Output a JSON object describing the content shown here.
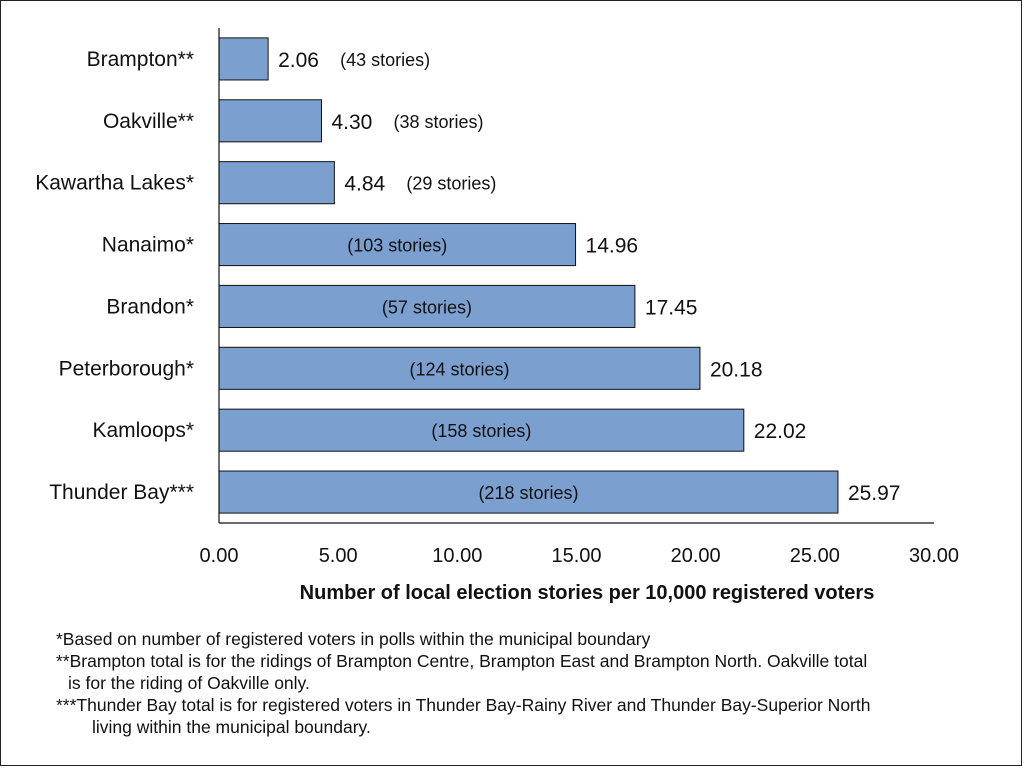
{
  "chart_data": {
    "type": "bar",
    "orientation": "horizontal",
    "categories": [
      "Brampton**",
      "Oakville**",
      "Kawartha Lakes*",
      "Nanaimo*",
      "Brandon*",
      "Peterborough*",
      "Kamloops*",
      "Thunder Bay***"
    ],
    "values": [
      2.06,
      4.3,
      4.84,
      14.96,
      17.45,
      20.18,
      22.02,
      25.97
    ],
    "value_labels": [
      "2.06",
      "4.30",
      "4.84",
      "14.96",
      "17.45",
      "20.18",
      "22.02",
      "25.97"
    ],
    "story_labels": [
      "(43 stories)",
      "(38 stories)",
      "(29 stories)",
      "(103 stories)",
      "(57 stories)",
      "(124 stories)",
      "(158 stories)",
      "(218 stories)"
    ],
    "xlabel": "Number of local election stories per 10,000  registered voters",
    "xlim": [
      0,
      30
    ],
    "xticks": [
      "0.00",
      "5.00",
      "10.00",
      "15.00",
      "20.00",
      "25.00",
      "30.00"
    ],
    "grid": false,
    "legend": "none",
    "bar_color": "#7b9fcf"
  },
  "notes": [
    "*Based on number of registered voters in polls within the municipal boundary",
    "**Brampton total is for the ridings of Brampton Centre, Brampton East and Brampton North. Oakville total",
    "is for the riding of Oakville only.",
    "***Thunder Bay total  is for registered voters in Thunder Bay-Rainy River and Thunder Bay-Superior North",
    "living within the municipal boundary."
  ]
}
